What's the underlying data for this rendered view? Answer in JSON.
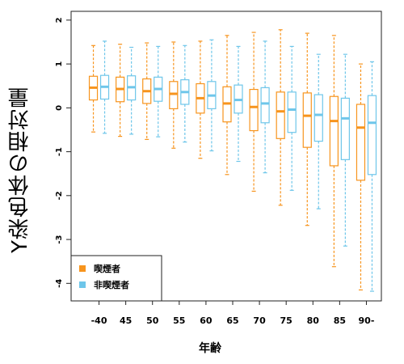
{
  "chart_data": {
    "type": "boxplot",
    "xlabel": "年齢",
    "ylabel": "Y染色体の相対量",
    "categories": [
      "-40",
      "45",
      "50",
      "55",
      "60",
      "65",
      "70",
      "75",
      "80",
      "85",
      "90-"
    ],
    "ylim": [
      -4.4,
      2.2
    ],
    "yticks": [
      2,
      1,
      0,
      -1,
      -2,
      -3,
      -4
    ],
    "grid": false,
    "legend_position": "bottom-left",
    "series": [
      {
        "name": "喫煙者",
        "color": "#f7941d",
        "boxes": [
          {
            "whisker_low": -0.55,
            "q1": 0.18,
            "median": 0.46,
            "q3": 0.72,
            "whisker_high": 1.42
          },
          {
            "whisker_low": -0.65,
            "q1": 0.14,
            "median": 0.43,
            "q3": 0.7,
            "whisker_high": 1.45
          },
          {
            "whisker_low": -0.72,
            "q1": 0.1,
            "median": 0.38,
            "q3": 0.66,
            "whisker_high": 1.48
          },
          {
            "whisker_low": -0.92,
            "q1": -0.02,
            "median": 0.32,
            "q3": 0.6,
            "whisker_high": 1.5
          },
          {
            "whisker_low": -1.15,
            "q1": -0.12,
            "median": 0.22,
            "q3": 0.55,
            "whisker_high": 1.52
          },
          {
            "whisker_low": -1.52,
            "q1": -0.32,
            "median": 0.1,
            "q3": 0.48,
            "whisker_high": 1.65
          },
          {
            "whisker_low": -1.9,
            "q1": -0.52,
            "median": 0.02,
            "q3": 0.42,
            "whisker_high": 1.72
          },
          {
            "whisker_low": -2.22,
            "q1": -0.7,
            "median": -0.08,
            "q3": 0.36,
            "whisker_high": 1.78
          },
          {
            "whisker_low": -2.68,
            "q1": -0.9,
            "median": -0.18,
            "q3": 0.34,
            "whisker_high": 1.7
          },
          {
            "whisker_low": -3.62,
            "q1": -1.32,
            "median": -0.3,
            "q3": 0.26,
            "whisker_high": 1.65
          },
          {
            "whisker_low": -4.15,
            "q1": -1.65,
            "median": -0.45,
            "q3": 0.08,
            "whisker_high": 1.0
          }
        ]
      },
      {
        "name": "非喫煙者",
        "color": "#6ec6ea",
        "boxes": [
          {
            "whisker_low": -0.58,
            "q1": 0.2,
            "median": 0.48,
            "q3": 0.74,
            "whisker_high": 1.52
          },
          {
            "whisker_low": -0.6,
            "q1": 0.18,
            "median": 0.47,
            "q3": 0.73,
            "whisker_high": 1.38
          },
          {
            "whisker_low": -0.66,
            "q1": 0.15,
            "median": 0.43,
            "q3": 0.7,
            "whisker_high": 1.4
          },
          {
            "whisker_low": -0.78,
            "q1": 0.08,
            "median": 0.36,
            "q3": 0.64,
            "whisker_high": 1.42
          },
          {
            "whisker_low": -0.98,
            "q1": -0.02,
            "median": 0.28,
            "q3": 0.6,
            "whisker_high": 1.55
          },
          {
            "whisker_low": -1.22,
            "q1": -0.12,
            "median": 0.18,
            "q3": 0.52,
            "whisker_high": 1.4
          },
          {
            "whisker_low": -1.48,
            "q1": -0.34,
            "median": 0.1,
            "q3": 0.46,
            "whisker_high": 1.52
          },
          {
            "whisker_low": -1.88,
            "q1": -0.56,
            "median": -0.04,
            "q3": 0.36,
            "whisker_high": 1.4
          },
          {
            "whisker_low": -2.3,
            "q1": -0.76,
            "median": -0.16,
            "q3": 0.3,
            "whisker_high": 1.22
          },
          {
            "whisker_low": -3.15,
            "q1": -1.18,
            "median": -0.24,
            "q3": 0.22,
            "whisker_high": 1.22
          },
          {
            "whisker_low": -4.18,
            "q1": -1.52,
            "median": -0.34,
            "q3": 0.28,
            "whisker_high": 1.05
          }
        ]
      }
    ]
  }
}
